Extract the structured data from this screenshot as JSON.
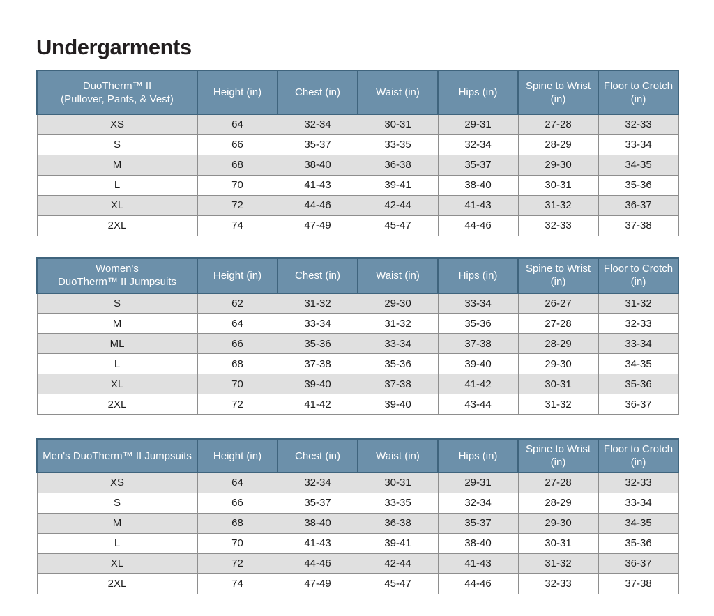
{
  "page": {
    "title": "Undergarments"
  },
  "colors": {
    "header_bg": "#6C90AA",
    "header_text": "#FFFFFF",
    "header_border": "#3F647D",
    "row_alt_bg": "#E0E0E0",
    "row_bg": "#FFFFFF",
    "cell_border": "#8E8E8E",
    "text": "#1C1C1C"
  },
  "columns": [
    "Height (in)",
    "Chest (in)",
    "Waist (in)",
    "Hips (in)",
    "Spine to Wrist (in)",
    "Floor to Crotch (in)"
  ],
  "tables": [
    {
      "id": "duotherm-pullover-pants-vest",
      "label_lines": [
        "DuoTherm™ II",
        "(Pullover, Pants, & Vest)"
      ],
      "rows": [
        {
          "size": "XS",
          "values": [
            "64",
            "32-34",
            "30-31",
            "29-31",
            "27-28",
            "32-33"
          ]
        },
        {
          "size": "S",
          "values": [
            "66",
            "35-37",
            "33-35",
            "32-34",
            "28-29",
            "33-34"
          ]
        },
        {
          "size": "M",
          "values": [
            "68",
            "38-40",
            "36-38",
            "35-37",
            "29-30",
            "34-35"
          ]
        },
        {
          "size": "L",
          "values": [
            "70",
            "41-43",
            "39-41",
            "38-40",
            "30-31",
            "35-36"
          ]
        },
        {
          "size": "XL",
          "values": [
            "72",
            "44-46",
            "42-44",
            "41-43",
            "31-32",
            "36-37"
          ]
        },
        {
          "size": "2XL",
          "values": [
            "74",
            "47-49",
            "45-47",
            "44-46",
            "32-33",
            "37-38"
          ]
        }
      ]
    },
    {
      "id": "womens-duotherm-jumpsuits",
      "label_lines": [
        "Women's",
        "DuoTherm™ II Jumpsuits"
      ],
      "rows": [
        {
          "size": "S",
          "values": [
            "62",
            "31-32",
            "29-30",
            "33-34",
            "26-27",
            "31-32"
          ]
        },
        {
          "size": "M",
          "values": [
            "64",
            "33-34",
            "31-32",
            "35-36",
            "27-28",
            "32-33"
          ]
        },
        {
          "size": "ML",
          "values": [
            "66",
            "35-36",
            "33-34",
            "37-38",
            "28-29",
            "33-34"
          ]
        },
        {
          "size": "L",
          "values": [
            "68",
            "37-38",
            "35-36",
            "39-40",
            "29-30",
            "34-35"
          ]
        },
        {
          "size": "XL",
          "values": [
            "70",
            "39-40",
            "37-38",
            "41-42",
            "30-31",
            "35-36"
          ]
        },
        {
          "size": "2XL",
          "values": [
            "72",
            "41-42",
            "39-40",
            "43-44",
            "31-32",
            "36-37"
          ]
        }
      ]
    },
    {
      "id": "mens-duotherm-jumpsuits",
      "label_lines": [
        "Men's DuoTherm™ II Jumpsuits"
      ],
      "rows": [
        {
          "size": "XS",
          "values": [
            "64",
            "32-34",
            "30-31",
            "29-31",
            "27-28",
            "32-33"
          ]
        },
        {
          "size": "S",
          "values": [
            "66",
            "35-37",
            "33-35",
            "32-34",
            "28-29",
            "33-34"
          ]
        },
        {
          "size": "M",
          "values": [
            "68",
            "38-40",
            "36-38",
            "35-37",
            "29-30",
            "34-35"
          ]
        },
        {
          "size": "L",
          "values": [
            "70",
            "41-43",
            "39-41",
            "38-40",
            "30-31",
            "35-36"
          ]
        },
        {
          "size": "XL",
          "values": [
            "72",
            "44-46",
            "42-44",
            "41-43",
            "31-32",
            "36-37"
          ]
        },
        {
          "size": "2XL",
          "values": [
            "74",
            "47-49",
            "45-47",
            "44-46",
            "32-33",
            "37-38"
          ]
        }
      ]
    }
  ]
}
